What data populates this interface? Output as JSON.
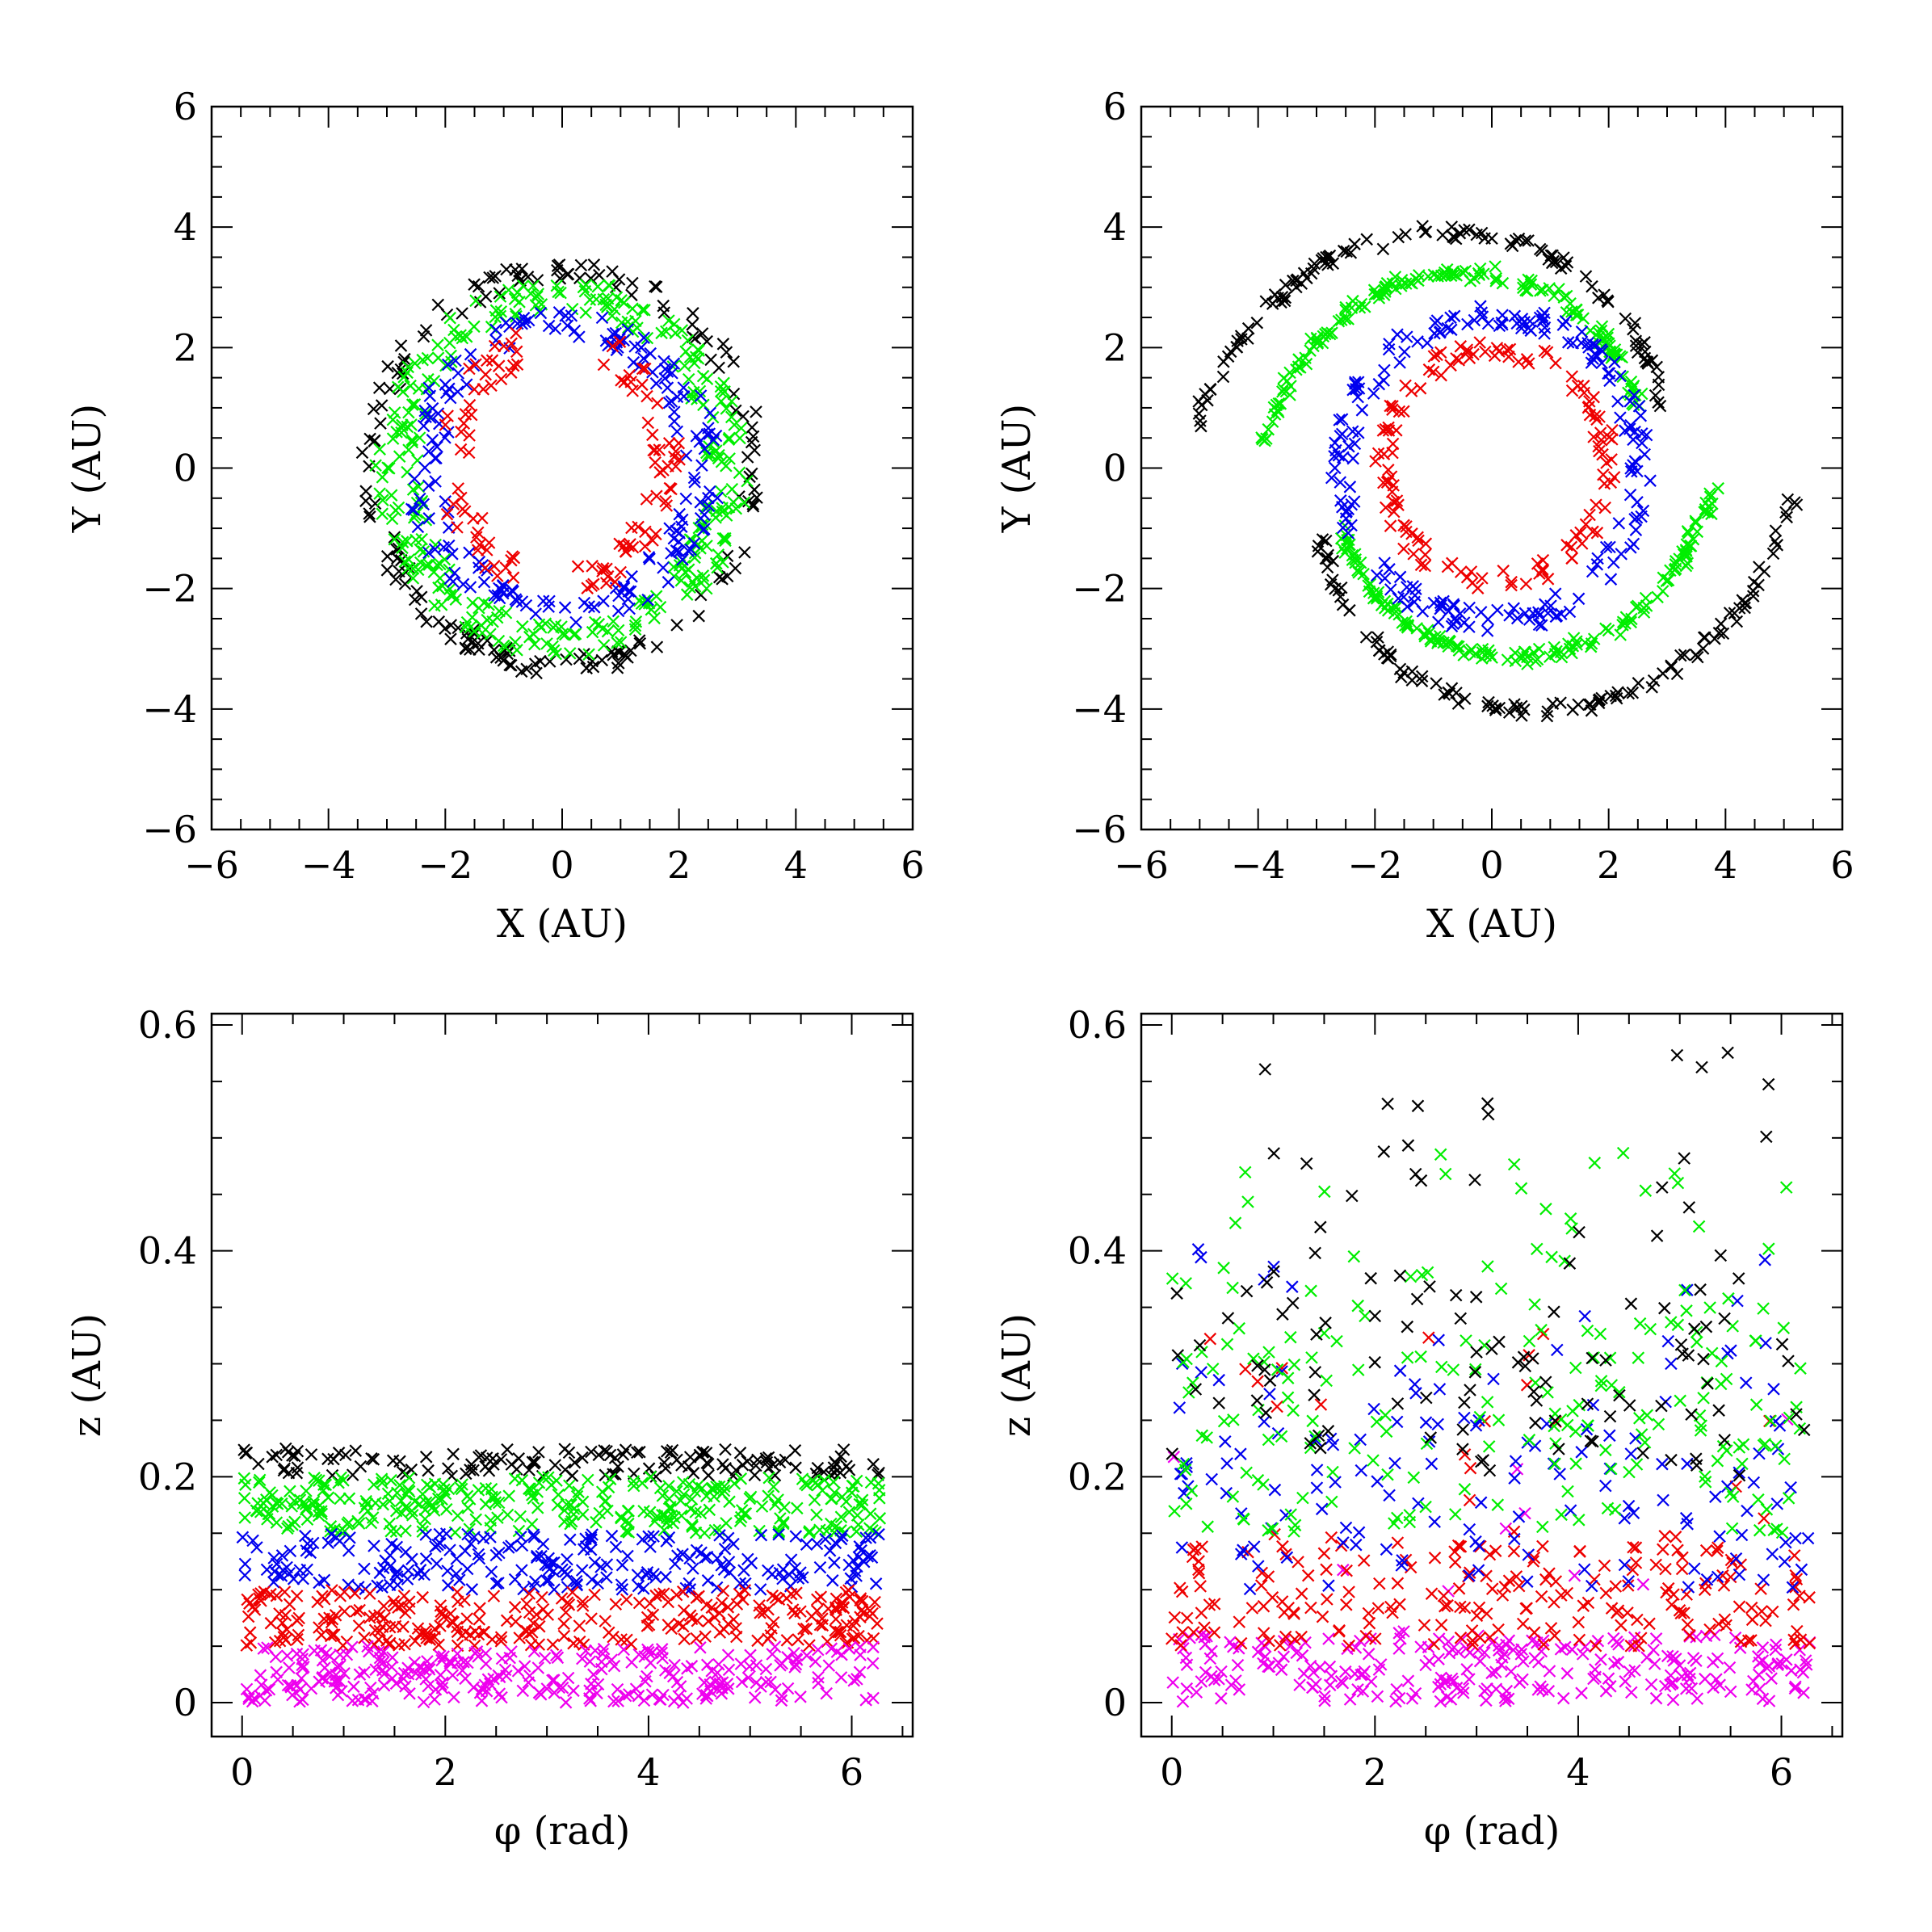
{
  "colors": {
    "black": "#000000",
    "green": "#00ee00",
    "blue": "#0000ee",
    "red": "#ee0000",
    "magenta": "#ee00ee"
  },
  "chart_data": [
    {
      "id": "panel-xy-initial",
      "type": "scatter",
      "title": "",
      "xlabel": "X (AU)",
      "ylabel": "Y (AU)",
      "xlim": [
        -6,
        6
      ],
      "ylim": [
        -6,
        6
      ],
      "xticks": [
        -6,
        -4,
        -2,
        0,
        2,
        4,
        6
      ],
      "yticks": [
        -6,
        -4,
        -2,
        0,
        2,
        4,
        6
      ],
      "xtick_labels": [
        "−6",
        "−4",
        "−2",
        "0",
        "2",
        "4",
        "6"
      ],
      "ytick_labels": [
        "−6",
        "−4",
        "−2",
        "0",
        "2",
        "4",
        "6"
      ],
      "marker": "x",
      "series": [
        {
          "name": "black",
          "color": "black",
          "shape": "ring",
          "count": 170,
          "rx": [
            3.05,
            3.45
          ],
          "ry": [
            3.1,
            3.45
          ],
          "cx": 0,
          "cy": 0
        },
        {
          "name": "green",
          "color": "green",
          "shape": "ring",
          "count": 320,
          "rx": [
            2.45,
            3.2
          ],
          "ry": [
            2.6,
            3.15
          ],
          "cx": 0,
          "cy": 0
        },
        {
          "name": "blue",
          "color": "blue",
          "shape": "ring",
          "count": 190,
          "rx": [
            2.0,
            2.75
          ],
          "ry": [
            2.2,
            2.6
          ],
          "cx": 0,
          "cy": 0
        },
        {
          "name": "red",
          "color": "red",
          "shape": "ring",
          "count": 110,
          "rx": [
            1.55,
            2.1
          ],
          "ry": [
            1.75,
            2.3
          ],
          "cx": -0.05,
          "cy": 0.1,
          "gaps": [
            [
              1.2,
              1.9
            ],
            [
              4.3,
              4.9
            ]
          ]
        }
      ]
    },
    {
      "id": "panel-xy-evolved",
      "type": "scatter",
      "title": "",
      "xlabel": "X (AU)",
      "ylabel": "Y (AU)",
      "xlim": [
        -6,
        6
      ],
      "ylim": [
        -6,
        6
      ],
      "xticks": [
        -6,
        -4,
        -2,
        0,
        2,
        4,
        6
      ],
      "yticks": [
        -6,
        -4,
        -2,
        0,
        2,
        4,
        6
      ],
      "xtick_labels": [
        "−6",
        "−4",
        "−2",
        "0",
        "2",
        "4",
        "6"
      ],
      "ytick_labels": [
        "−6",
        "−4",
        "−2",
        "0",
        "2",
        "4",
        "6"
      ],
      "marker": "x",
      "series": [
        {
          "name": "black",
          "color": "black",
          "shape": "spiral",
          "count": 230,
          "r0": 3.1,
          "k": 0.19,
          "cx": 0,
          "cy": -0.05,
          "ring_extra": 40
        },
        {
          "name": "green",
          "color": "green",
          "shape": "spiral",
          "count": 320,
          "r0": 2.7,
          "k": 0.13,
          "cx": -0.05,
          "cy": 0.05,
          "ring_extra": 0
        },
        {
          "name": "blue",
          "color": "blue",
          "shape": "ring",
          "count": 200,
          "rx": [
            2.35,
            2.75
          ],
          "ry": [
            2.35,
            2.75
          ],
          "cx": 0,
          "cy": 0
        },
        {
          "name": "red",
          "color": "red",
          "shape": "ring",
          "count": 130,
          "rx": [
            1.75,
            2.1
          ],
          "ry": [
            1.75,
            2.1
          ],
          "cx": 0.05,
          "cy": 0.05
        }
      ]
    },
    {
      "id": "panel-z-initial",
      "type": "scatter",
      "title": "",
      "xlabel": "φ (rad)",
      "ylabel": "z (AU)",
      "xlim": [
        -0.3,
        6.6
      ],
      "ylim": [
        -0.03,
        0.61
      ],
      "xticks": [
        0,
        2,
        4,
        6
      ],
      "yticks": [
        0,
        0.2,
        0.4,
        0.6
      ],
      "xtick_labels": [
        "0",
        "2",
        "4",
        "6"
      ],
      "ytick_labels": [
        "0",
        "0.2",
        "0.4",
        "0.6"
      ],
      "marker": "x",
      "series": [
        {
          "name": "black",
          "color": "black",
          "shape": "band",
          "count": 140,
          "zrange": [
            0.2,
            0.225
          ]
        },
        {
          "name": "green",
          "color": "green",
          "shape": "band",
          "count": 310,
          "zrange": [
            0.15,
            0.2
          ]
        },
        {
          "name": "blue",
          "color": "blue",
          "shape": "band",
          "count": 230,
          "zrange": [
            0.1,
            0.15
          ]
        },
        {
          "name": "red",
          "color": "red",
          "shape": "band",
          "count": 280,
          "zrange": [
            0.05,
            0.1
          ]
        },
        {
          "name": "magenta",
          "color": "magenta",
          "shape": "band",
          "count": 290,
          "zrange": [
            0.0,
            0.05
          ]
        }
      ]
    },
    {
      "id": "panel-z-evolved",
      "type": "scatter",
      "title": "",
      "xlabel": "φ (rad)",
      "ylabel": "z (AU)",
      "xlim": [
        -0.3,
        6.6
      ],
      "ylim": [
        -0.03,
        0.61
      ],
      "xticks": [
        0,
        2,
        4,
        6
      ],
      "yticks": [
        0,
        0.2,
        0.4,
        0.6
      ],
      "xtick_labels": [
        "0",
        "2",
        "4",
        "6"
      ],
      "ytick_labels": [
        "0",
        "0.2",
        "0.4",
        "0.6"
      ],
      "marker": "x",
      "series": [
        {
          "name": "magenta",
          "color": "magenta",
          "shape": "band",
          "count": 260,
          "zrange": [
            0.0,
            0.06
          ],
          "tail": [
            0.06,
            0.26
          ],
          "tail_frac": 0.06
        },
        {
          "name": "red",
          "color": "red",
          "shape": "band",
          "count": 230,
          "zrange": [
            0.05,
            0.14
          ],
          "tail": [
            0.14,
            0.33
          ],
          "tail_frac": 0.1
        },
        {
          "name": "blue",
          "color": "blue",
          "shape": "band",
          "count": 150,
          "zrange": [
            0.1,
            0.25
          ],
          "tail": [
            0.25,
            0.41
          ],
          "tail_frac": 0.2
        },
        {
          "name": "green",
          "color": "green",
          "shape": "band",
          "count": 210,
          "zrange": [
            0.15,
            0.32
          ],
          "tail": [
            0.32,
            0.49
          ],
          "tail_frac": 0.25
        },
        {
          "name": "black",
          "color": "black",
          "shape": "band",
          "count": 120,
          "zrange": [
            0.2,
            0.34
          ],
          "tail": [
            0.34,
            0.58
          ],
          "tail_frac": 0.35
        }
      ]
    }
  ]
}
